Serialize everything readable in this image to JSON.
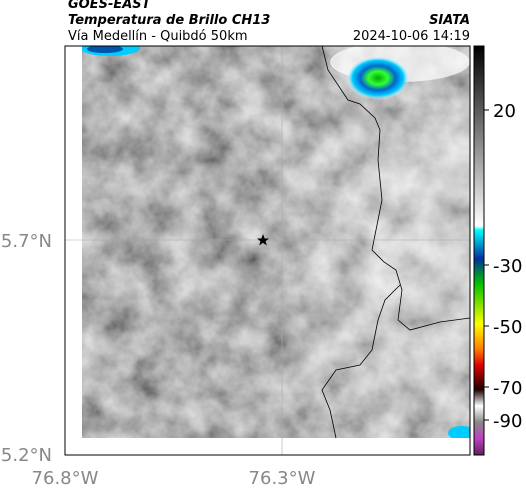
{
  "header": {
    "satellite": "GOES-EAST",
    "product": "Temperatura de Brillo CH13",
    "source": "SIATA",
    "route": "Vía Medellín - Quibdó 50km",
    "datetime": "2024-10-06 14:19"
  },
  "map": {
    "lat_labels": [
      "5.7°N",
      "5.2°N"
    ],
    "lon_labels": [
      "76.8°W",
      "76.3°W"
    ]
  },
  "colorbar": {
    "ticks": [
      20,
      -30,
      -50,
      -70,
      -90
    ]
  }
}
